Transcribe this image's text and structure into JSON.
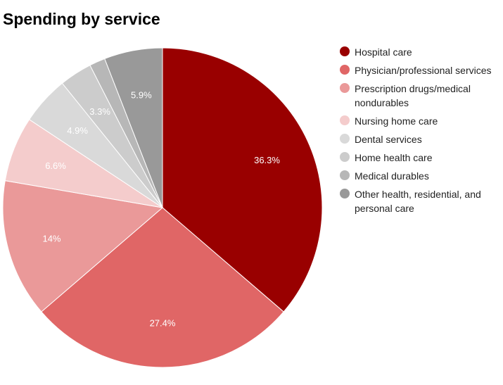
{
  "chart_data": {
    "type": "pie",
    "title": "Spending by service",
    "legend_position": "right",
    "slices": [
      {
        "label": "Hospital care",
        "value": 36.3,
        "display": "36.3%",
        "color": "#990000"
      },
      {
        "label": "Physician/professional services",
        "value": 27.4,
        "display": "27.4%",
        "color": "#e06666"
      },
      {
        "label": "Prescription drugs/medical nondurables",
        "value": 14.0,
        "display": "14%",
        "color": "#ea9999"
      },
      {
        "label": "Nursing home care",
        "value": 6.6,
        "display": "6.6%",
        "color": "#f4cccc"
      },
      {
        "label": "Dental services",
        "value": 4.9,
        "display": "4.9%",
        "color": "#d9d9d9"
      },
      {
        "label": "Home health care",
        "value": 3.3,
        "display": "3.3%",
        "color": "#cccccc"
      },
      {
        "label": "Medical durables",
        "value": 1.6,
        "display": "",
        "color": "#b7b7b7"
      },
      {
        "label": "Other health, residential, and personal care",
        "value": 5.9,
        "display": "5.9%",
        "color": "#999999"
      }
    ]
  }
}
